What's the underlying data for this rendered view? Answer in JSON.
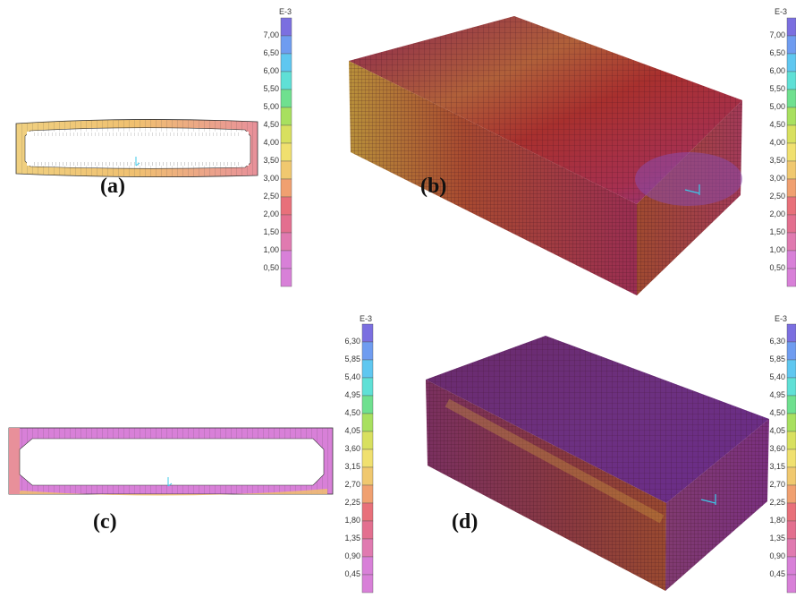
{
  "panels": {
    "a": {
      "label": "(a)"
    },
    "b": {
      "label": "(b)"
    },
    "c": {
      "label": "(c)"
    },
    "d": {
      "label": "(d)"
    }
  },
  "scales": {
    "top": {
      "unit": "E-3",
      "ticks": [
        "7,00",
        "6,50",
        "6,00",
        "5,50",
        "5,00",
        "4,50",
        "4,00",
        "3,50",
        "3,00",
        "2,50",
        "2,00",
        "1,50",
        "1,00",
        "0,50"
      ]
    },
    "bottom": {
      "unit": "E-3",
      "ticks": [
        "6,30",
        "5,85",
        "5,40",
        "4,95",
        "4,50",
        "4,05",
        "3,60",
        "3,15",
        "2,70",
        "2,25",
        "1,80",
        "1,35",
        "0,90",
        "0,45"
      ]
    },
    "top_right_partial": {
      "unit": "E-3",
      "ticks": [
        "7,00",
        "6,50",
        "6,00",
        "5,50",
        "5,00",
        "4,50",
        "4,00",
        "3,50",
        "3,00",
        "2,50",
        "2,00",
        "1,50",
        "1,00",
        "0,50"
      ]
    },
    "bottom_right_partial": {
      "unit": "E-3",
      "ticks": [
        "6,30",
        "5,85",
        "5,40",
        "4,95",
        "4,50",
        "4,05",
        "3,60",
        "3,15",
        "2,70",
        "2,25",
        "1,80",
        "1,35",
        "0,90",
        "0,45"
      ]
    }
  },
  "colors": [
    "#7b6fe0",
    "#6f9cf0",
    "#5fc7f0",
    "#5fe0d6",
    "#6fe08f",
    "#a8e05f",
    "#d8e05f",
    "#f0e06f",
    "#f0c86f",
    "#f0a070",
    "#e8707a",
    "#e36f8f",
    "#e07ab0",
    "#d880d8"
  ]
}
